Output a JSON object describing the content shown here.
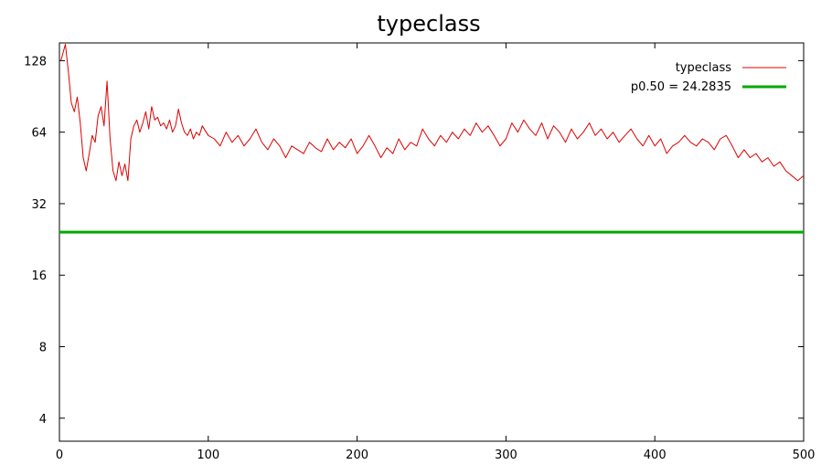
{
  "chart_data": {
    "type": "line",
    "title": "typeclass",
    "xlabel": "",
    "ylabel": "",
    "xlim": [
      0,
      500
    ],
    "ylim": [
      3.2,
      152
    ],
    "y_scale": "log2",
    "grid": false,
    "legend_position": "top-right",
    "x_ticks": [
      0,
      100,
      200,
      300,
      400,
      500
    ],
    "x_tick_labels": [
      "0",
      "100",
      "200",
      "300",
      "400",
      "500"
    ],
    "y_ticks": [
      4,
      8,
      16,
      32,
      64,
      128
    ],
    "y_tick_labels": [
      "4",
      "8",
      "16",
      "32",
      "64",
      "128"
    ],
    "series": [
      {
        "name": "typeclass",
        "color": "#dd0000",
        "width": 1,
        "points": [
          [
            1,
            128
          ],
          [
            4,
            150
          ],
          [
            6,
            115
          ],
          [
            8,
            85
          ],
          [
            10,
            78
          ],
          [
            12,
            90
          ],
          [
            14,
            70
          ],
          [
            16,
            50
          ],
          [
            18,
            44
          ],
          [
            20,
            52
          ],
          [
            22,
            62
          ],
          [
            24,
            58
          ],
          [
            26,
            75
          ],
          [
            28,
            82
          ],
          [
            30,
            68
          ],
          [
            32,
            105
          ],
          [
            34,
            60
          ],
          [
            36,
            44
          ],
          [
            38,
            40
          ],
          [
            40,
            48
          ],
          [
            42,
            42
          ],
          [
            44,
            47
          ],
          [
            46,
            40
          ],
          [
            48,
            60
          ],
          [
            50,
            68
          ],
          [
            52,
            72
          ],
          [
            54,
            64
          ],
          [
            56,
            70
          ],
          [
            58,
            78
          ],
          [
            60,
            66
          ],
          [
            62,
            82
          ],
          [
            64,
            72
          ],
          [
            66,
            74
          ],
          [
            68,
            68
          ],
          [
            70,
            70
          ],
          [
            72,
            66
          ],
          [
            74,
            72
          ],
          [
            76,
            64
          ],
          [
            78,
            68
          ],
          [
            80,
            80
          ],
          [
            82,
            70
          ],
          [
            84,
            64
          ],
          [
            86,
            62
          ],
          [
            88,
            66
          ],
          [
            90,
            60
          ],
          [
            92,
            64
          ],
          [
            94,
            62
          ],
          [
            96,
            68
          ],
          [
            100,
            62
          ],
          [
            104,
            60
          ],
          [
            108,
            56
          ],
          [
            112,
            64
          ],
          [
            116,
            58
          ],
          [
            120,
            62
          ],
          [
            124,
            56
          ],
          [
            128,
            60
          ],
          [
            132,
            66
          ],
          [
            136,
            58
          ],
          [
            140,
            54
          ],
          [
            144,
            60
          ],
          [
            148,
            56
          ],
          [
            152,
            50
          ],
          [
            156,
            56
          ],
          [
            160,
            54
          ],
          [
            164,
            52
          ],
          [
            168,
            58
          ],
          [
            172,
            55
          ],
          [
            176,
            53
          ],
          [
            180,
            60
          ],
          [
            184,
            54
          ],
          [
            188,
            58
          ],
          [
            192,
            55
          ],
          [
            196,
            60
          ],
          [
            200,
            52
          ],
          [
            204,
            56
          ],
          [
            208,
            62
          ],
          [
            212,
            56
          ],
          [
            216,
            50
          ],
          [
            220,
            55
          ],
          [
            224,
            52
          ],
          [
            228,
            60
          ],
          [
            232,
            54
          ],
          [
            236,
            58
          ],
          [
            240,
            56
          ],
          [
            244,
            66
          ],
          [
            248,
            60
          ],
          [
            252,
            56
          ],
          [
            256,
            62
          ],
          [
            260,
            58
          ],
          [
            264,
            64
          ],
          [
            268,
            60
          ],
          [
            272,
            66
          ],
          [
            276,
            62
          ],
          [
            280,
            70
          ],
          [
            284,
            64
          ],
          [
            288,
            68
          ],
          [
            292,
            62
          ],
          [
            296,
            56
          ],
          [
            300,
            60
          ],
          [
            304,
            70
          ],
          [
            308,
            64
          ],
          [
            312,
            72
          ],
          [
            316,
            66
          ],
          [
            320,
            62
          ],
          [
            324,
            70
          ],
          [
            328,
            60
          ],
          [
            332,
            68
          ],
          [
            336,
            64
          ],
          [
            340,
            58
          ],
          [
            344,
            66
          ],
          [
            348,
            60
          ],
          [
            352,
            64
          ],
          [
            356,
            70
          ],
          [
            360,
            62
          ],
          [
            364,
            66
          ],
          [
            368,
            60
          ],
          [
            372,
            64
          ],
          [
            376,
            58
          ],
          [
            380,
            62
          ],
          [
            384,
            66
          ],
          [
            388,
            60
          ],
          [
            392,
            56
          ],
          [
            396,
            62
          ],
          [
            400,
            56
          ],
          [
            404,
            60
          ],
          [
            408,
            52
          ],
          [
            412,
            56
          ],
          [
            416,
            58
          ],
          [
            420,
            62
          ],
          [
            424,
            58
          ],
          [
            428,
            56
          ],
          [
            432,
            60
          ],
          [
            436,
            58
          ],
          [
            440,
            54
          ],
          [
            444,
            60
          ],
          [
            448,
            62
          ],
          [
            452,
            56
          ],
          [
            456,
            50
          ],
          [
            460,
            54
          ],
          [
            464,
            50
          ],
          [
            468,
            52
          ],
          [
            472,
            48
          ],
          [
            476,
            50
          ],
          [
            480,
            46
          ],
          [
            484,
            48
          ],
          [
            488,
            44
          ],
          [
            492,
            42
          ],
          [
            496,
            40
          ],
          [
            500,
            42
          ]
        ]
      },
      {
        "name": "p0.50 = 24.2835",
        "color": "#00aa00",
        "width": 3,
        "points": [
          [
            0,
            24.2835
          ],
          [
            500,
            24.2835
          ]
        ]
      }
    ]
  }
}
